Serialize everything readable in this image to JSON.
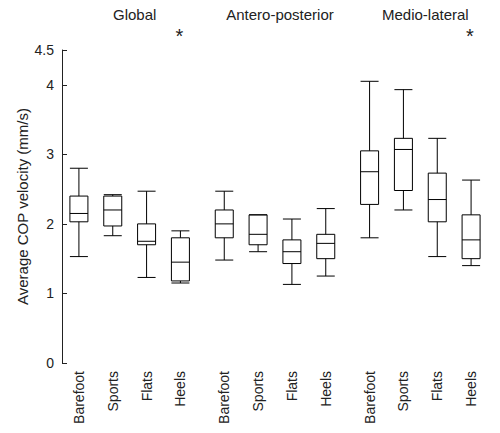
{
  "chart_data": {
    "type": "boxplot",
    "y_label": "Average COP velocity (mm/s)",
    "ylim": [
      0,
      4.5
    ],
    "yticks": [
      0,
      1,
      2,
      3,
      4
    ],
    "color": "#000000",
    "groups": [
      {
        "title": "Global",
        "categories": [
          "Barefoot",
          "Sports",
          "Flats",
          "Heels"
        ],
        "values": [
          [
            1.53,
            2.03,
            2.15,
            2.4,
            2.8
          ],
          [
            1.83,
            1.97,
            2.2,
            2.4,
            2.42
          ],
          [
            1.23,
            1.7,
            1.75,
            2.0,
            2.47
          ],
          [
            1.15,
            1.18,
            1.45,
            1.8,
            1.9
          ]
        ],
        "annotations": [
          null,
          null,
          null,
          "*"
        ]
      },
      {
        "title": "Antero-posterior",
        "categories": [
          "Barefoot",
          "Sports",
          "Flats",
          "Heels"
        ],
        "values": [
          [
            1.48,
            1.8,
            2.0,
            2.2,
            2.47
          ],
          [
            1.6,
            1.7,
            1.85,
            2.13,
            2.13
          ],
          [
            1.13,
            1.43,
            1.6,
            1.77,
            2.07
          ],
          [
            1.25,
            1.5,
            1.72,
            1.85,
            2.22
          ]
        ],
        "annotations": [
          null,
          null,
          null,
          null
        ]
      },
      {
        "title": "Medio-lateral",
        "categories": [
          "Barefoot",
          "Sports",
          "Flats",
          "Heels"
        ],
        "values": [
          [
            1.8,
            2.28,
            2.75,
            3.05,
            4.05
          ],
          [
            2.2,
            2.48,
            3.07,
            3.23,
            3.93
          ],
          [
            1.53,
            2.03,
            2.35,
            2.73,
            3.23
          ],
          [
            1.4,
            1.5,
            1.77,
            2.13,
            2.63
          ]
        ],
        "annotations": [
          null,
          null,
          null,
          "*"
        ]
      }
    ]
  }
}
